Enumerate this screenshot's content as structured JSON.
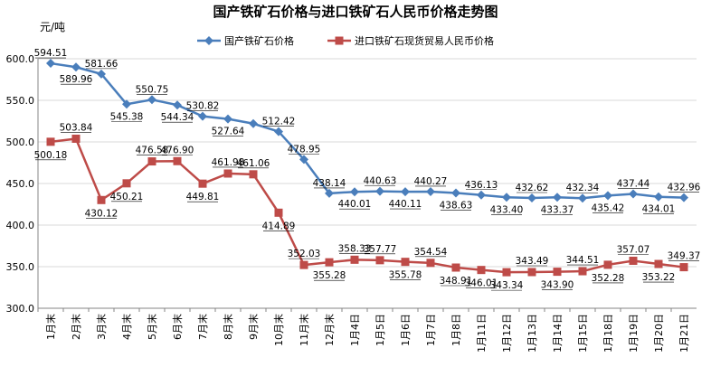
{
  "chart_data": {
    "type": "line",
    "title": "国产铁矿石价格与进口铁矿石人民币价格走势图",
    "ylabel": "元/吨",
    "xlabel": "",
    "ylim": [
      300,
      600
    ],
    "yticks": [
      "300.0",
      "350.0",
      "400.0",
      "450.0",
      "500.0",
      "550.0",
      "600.0"
    ],
    "grid": true,
    "legend_position": "top-right",
    "categories": [
      "1月末",
      "2月末",
      "3月末",
      "4月末",
      "5月末",
      "6月末",
      "7月末",
      "8月末",
      "9月末",
      "10月末",
      "11月末",
      "12月末",
      "1月4日",
      "1月5日",
      "1月6日",
      "1月7日",
      "1月8日",
      "1月11日",
      "1月12日",
      "1月13日",
      "1月14日",
      "1月15日",
      "1月18日",
      "1月19日",
      "1月20日",
      "1月21日"
    ],
    "series": [
      {
        "name": "国产铁矿石价格",
        "color": "#4a7ebb",
        "marker": "diamond",
        "values": [
          594.51,
          589.96,
          581.66,
          545.38,
          550.75,
          544.34,
          530.82,
          527.64,
          522.0,
          512.42,
          478.95,
          438.14,
          440.01,
          440.63,
          440.11,
          440.27,
          438.63,
          436.13,
          433.4,
          432.62,
          433.37,
          432.34,
          435.42,
          437.44,
          434.01,
          432.96
        ],
        "labels": [
          "594.51",
          "589.96",
          "581.66",
          "545.38",
          "550.75",
          "544.34",
          "530.82",
          "527.64",
          "",
          "512.42",
          "478.95",
          "438.14",
          "440.01",
          "440.63",
          "440.11",
          "440.27",
          "438.63",
          "436.13",
          "433.40",
          "432.62",
          "433.37",
          "432.34",
          "435.42",
          "437.44",
          "434.01",
          "432.96"
        ]
      },
      {
        "name": "进口铁矿石现货贸易人民币价格",
        "color": "#be4b48",
        "marker": "square",
        "values": [
          500.18,
          503.84,
          430.12,
          450.21,
          476.58,
          476.9,
          449.81,
          461.98,
          461.06,
          414.89,
          352.03,
          355.28,
          358.33,
          357.77,
          355.78,
          354.54,
          348.91,
          346.01,
          343.34,
          343.49,
          343.9,
          344.51,
          352.28,
          357.07,
          353.22,
          349.37
        ],
        "labels": [
          "500.18",
          "503.84",
          "430.12",
          "450.21",
          "476.58",
          "476.90",
          "449.81",
          "461.98",
          "461.06",
          "414.89",
          "352.03",
          "355.28",
          "358.33",
          "357.77",
          "355.78",
          "354.54",
          "348.91",
          "346.01",
          "343.34",
          "343.49",
          "343.90",
          "344.51",
          "352.28",
          "357.07",
          "353.22",
          "349.37"
        ]
      }
    ]
  }
}
